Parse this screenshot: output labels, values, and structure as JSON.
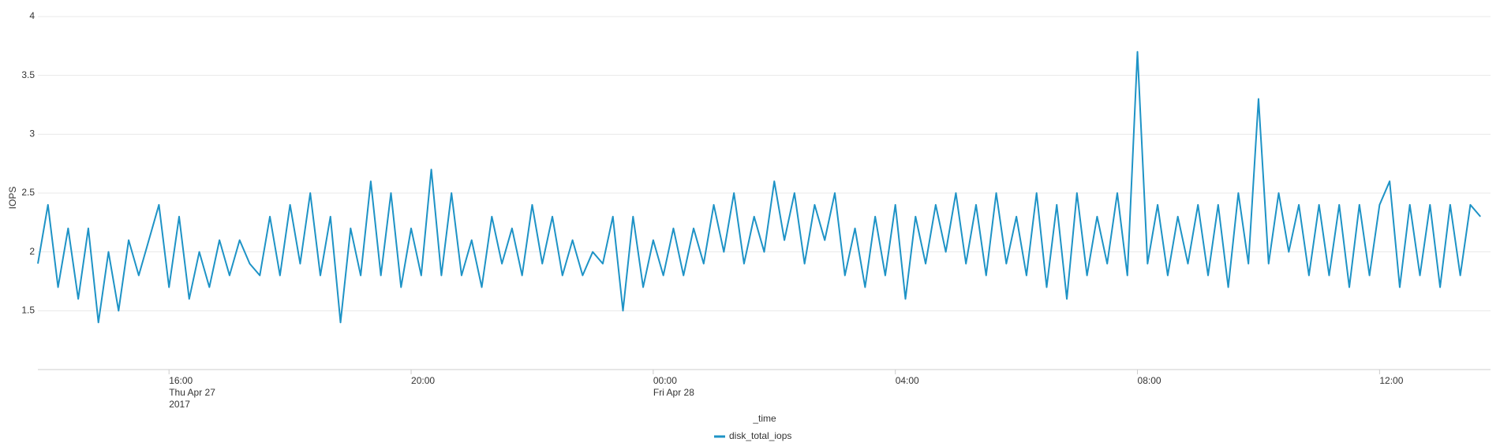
{
  "chart_data": {
    "type": "line",
    "ylabel": "IOPS",
    "xlabel": "_time",
    "x": [
      "2017-04-27 13:50",
      "2017-04-27 14:00",
      "2017-04-27 14:10",
      "2017-04-27 14:20",
      "2017-04-27 14:30",
      "2017-04-27 14:40",
      "2017-04-27 14:50",
      "2017-04-27 15:00",
      "2017-04-27 15:10",
      "2017-04-27 15:20",
      "2017-04-27 15:30",
      "2017-04-27 15:40",
      "2017-04-27 15:50",
      "2017-04-27 16:00",
      "2017-04-27 16:10",
      "2017-04-27 16:20",
      "2017-04-27 16:30",
      "2017-04-27 16:40",
      "2017-04-27 16:50",
      "2017-04-27 17:00",
      "2017-04-27 17:10",
      "2017-04-27 17:20",
      "2017-04-27 17:30",
      "2017-04-27 17:40",
      "2017-04-27 17:50",
      "2017-04-27 18:00",
      "2017-04-27 18:10",
      "2017-04-27 18:20",
      "2017-04-27 18:30",
      "2017-04-27 18:40",
      "2017-04-27 18:50",
      "2017-04-27 19:00",
      "2017-04-27 19:10",
      "2017-04-27 19:20",
      "2017-04-27 19:30",
      "2017-04-27 19:40",
      "2017-04-27 19:50",
      "2017-04-27 20:00",
      "2017-04-27 20:10",
      "2017-04-27 20:20",
      "2017-04-27 20:30",
      "2017-04-27 20:40",
      "2017-04-27 20:50",
      "2017-04-27 21:00",
      "2017-04-27 21:10",
      "2017-04-27 21:20",
      "2017-04-27 21:30",
      "2017-04-27 21:40",
      "2017-04-27 21:50",
      "2017-04-27 22:00",
      "2017-04-27 22:10",
      "2017-04-27 22:20",
      "2017-04-27 22:30",
      "2017-04-27 22:40",
      "2017-04-27 22:50",
      "2017-04-27 23:00",
      "2017-04-27 23:10",
      "2017-04-27 23:20",
      "2017-04-27 23:30",
      "2017-04-27 23:40",
      "2017-04-27 23:50",
      "2017-04-28 00:00",
      "2017-04-28 00:10",
      "2017-04-28 00:20",
      "2017-04-28 00:30",
      "2017-04-28 00:40",
      "2017-04-28 00:50",
      "2017-04-28 01:00",
      "2017-04-28 01:10",
      "2017-04-28 01:20",
      "2017-04-28 01:30",
      "2017-04-28 01:40",
      "2017-04-28 01:50",
      "2017-04-28 02:00",
      "2017-04-28 02:10",
      "2017-04-28 02:20",
      "2017-04-28 02:30",
      "2017-04-28 02:40",
      "2017-04-28 02:50",
      "2017-04-28 03:00",
      "2017-04-28 03:10",
      "2017-04-28 03:20",
      "2017-04-28 03:30",
      "2017-04-28 03:40",
      "2017-04-28 03:50",
      "2017-04-28 04:00",
      "2017-04-28 04:10",
      "2017-04-28 04:20",
      "2017-04-28 04:30",
      "2017-04-28 04:40",
      "2017-04-28 04:50",
      "2017-04-28 05:00",
      "2017-04-28 05:10",
      "2017-04-28 05:20",
      "2017-04-28 05:30",
      "2017-04-28 05:40",
      "2017-04-28 05:50",
      "2017-04-28 06:00",
      "2017-04-28 06:10",
      "2017-04-28 06:20",
      "2017-04-28 06:30",
      "2017-04-28 06:40",
      "2017-04-28 06:50",
      "2017-04-28 07:00",
      "2017-04-28 07:10",
      "2017-04-28 07:20",
      "2017-04-28 07:30",
      "2017-04-28 07:40",
      "2017-04-28 07:50",
      "2017-04-28 08:00",
      "2017-04-28 08:10",
      "2017-04-28 08:20",
      "2017-04-28 08:30",
      "2017-04-28 08:40",
      "2017-04-28 08:50",
      "2017-04-28 09:00",
      "2017-04-28 09:10",
      "2017-04-28 09:20",
      "2017-04-28 09:30",
      "2017-04-28 09:40",
      "2017-04-28 09:50",
      "2017-04-28 10:00",
      "2017-04-28 10:10",
      "2017-04-28 10:20",
      "2017-04-28 10:30",
      "2017-04-28 10:40",
      "2017-04-28 10:50",
      "2017-04-28 11:00",
      "2017-04-28 11:10",
      "2017-04-28 11:20",
      "2017-04-28 11:30",
      "2017-04-28 11:40",
      "2017-04-28 11:50",
      "2017-04-28 12:00",
      "2017-04-28 12:10",
      "2017-04-28 12:20",
      "2017-04-28 12:30",
      "2017-04-28 12:40",
      "2017-04-28 12:50",
      "2017-04-28 13:00",
      "2017-04-28 13:10",
      "2017-04-28 13:20",
      "2017-04-28 13:30",
      "2017-04-28 13:40"
    ],
    "series": [
      {
        "name": "disk_total_iops",
        "color": "#1e93c6",
        "values": [
          1.9,
          2.4,
          1.7,
          2.2,
          1.6,
          2.2,
          1.4,
          2.0,
          1.5,
          2.1,
          1.8,
          2.1,
          2.4,
          1.7,
          2.3,
          1.6,
          2.0,
          1.7,
          2.1,
          1.8,
          2.1,
          1.9,
          1.8,
          2.3,
          1.8,
          2.4,
          1.9,
          2.5,
          1.8,
          2.3,
          1.4,
          2.2,
          1.8,
          2.6,
          1.8,
          2.5,
          1.7,
          2.2,
          1.8,
          2.7,
          1.8,
          2.5,
          1.8,
          2.1,
          1.7,
          2.3,
          1.9,
          2.2,
          1.8,
          2.4,
          1.9,
          2.3,
          1.8,
          2.1,
          1.8,
          2.0,
          1.9,
          2.3,
          1.5,
          2.3,
          1.7,
          2.1,
          1.8,
          2.2,
          1.8,
          2.2,
          1.9,
          2.4,
          2.0,
          2.5,
          1.9,
          2.3,
          2.0,
          2.6,
          2.1,
          2.5,
          1.9,
          2.4,
          2.1,
          2.5,
          1.8,
          2.2,
          1.7,
          2.3,
          1.8,
          2.4,
          1.6,
          2.3,
          1.9,
          2.4,
          2.0,
          2.5,
          1.9,
          2.4,
          1.8,
          2.5,
          1.9,
          2.3,
          1.8,
          2.5,
          1.7,
          2.4,
          1.6,
          2.5,
          1.8,
          2.3,
          1.9,
          2.5,
          1.8,
          3.7,
          1.9,
          2.4,
          1.8,
          2.3,
          1.9,
          2.4,
          1.8,
          2.4,
          1.7,
          2.5,
          1.9,
          3.3,
          1.9,
          2.5,
          2.0,
          2.4,
          1.8,
          2.4,
          1.8,
          2.4,
          1.7,
          2.4,
          1.8,
          2.4,
          2.6,
          1.7,
          2.4,
          1.8,
          2.4,
          1.7,
          2.4,
          1.8,
          2.4,
          2.3
        ]
      }
    ],
    "xlim": [
      "2017-04-27 13:50",
      "2017-04-28 13:50"
    ],
    "xticks": [
      {
        "value": "2017-04-27 16:00",
        "label": [
          "16:00",
          "Thu Apr 27",
          "2017"
        ]
      },
      {
        "value": "2017-04-27 20:00",
        "label": [
          "20:00"
        ]
      },
      {
        "value": "2017-04-28 00:00",
        "label": [
          "00:00",
          "Fri Apr 28"
        ]
      },
      {
        "value": "2017-04-28 04:00",
        "label": [
          "04:00"
        ]
      },
      {
        "value": "2017-04-28 08:00",
        "label": [
          "08:00"
        ]
      },
      {
        "value": "2017-04-28 12:00",
        "label": [
          "12:00"
        ]
      }
    ],
    "ylim": [
      1,
      4
    ],
    "yticks": [
      1.5,
      2,
      2.5,
      3,
      3.5,
      4
    ],
    "grid": true,
    "legend": "bottom"
  }
}
